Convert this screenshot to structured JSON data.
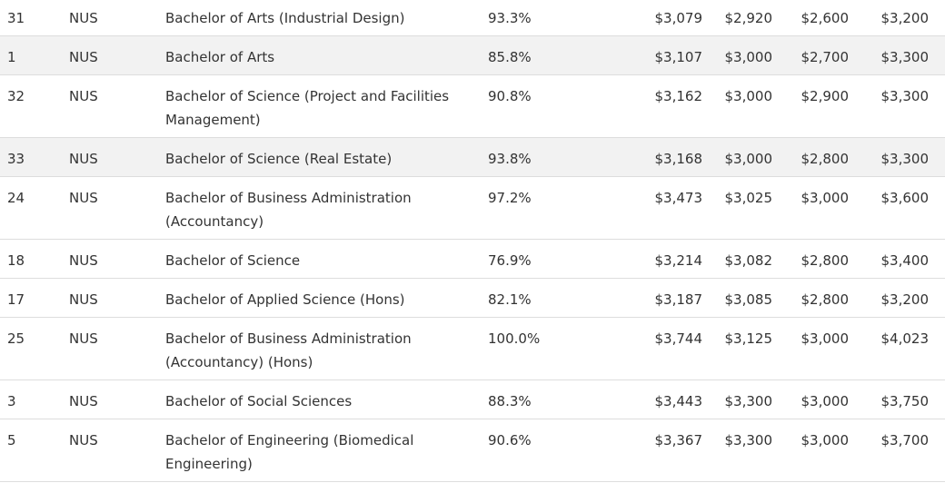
{
  "table": {
    "rows": [
      {
        "rank": "31",
        "university": "NUS",
        "degree": "Bachelor of Arts (Industrial Design)",
        "employment": "93.3%",
        "mean": "$3,079",
        "median": "$2,920",
        "p25": "$2,600",
        "p75": "$3,200"
      },
      {
        "rank": "1",
        "university": "NUS",
        "degree": "Bachelor of Arts",
        "employment": "85.8%",
        "mean": "$3,107",
        "median": "$3,000",
        "p25": "$2,700",
        "p75": "$3,300"
      },
      {
        "rank": "32",
        "university": "NUS",
        "degree": "Bachelor of Science (Project and Facilities Management)",
        "employment": "90.8%",
        "mean": "$3,162",
        "median": "$3,000",
        "p25": "$2,900",
        "p75": "$3,300"
      },
      {
        "rank": "33",
        "university": "NUS",
        "degree": "Bachelor of Science (Real Estate)",
        "employment": "93.8%",
        "mean": "$3,168",
        "median": "$3,000",
        "p25": "$2,800",
        "p75": "$3,300"
      },
      {
        "rank": "24",
        "university": "NUS",
        "degree": "Bachelor of Business Administration (Accountancy)",
        "employment": "97.2%",
        "mean": "$3,473",
        "median": "$3,025",
        "p25": "$3,000",
        "p75": "$3,600"
      },
      {
        "rank": "18",
        "university": "NUS",
        "degree": "Bachelor of Science",
        "employment": "76.9%",
        "mean": "$3,214",
        "median": "$3,082",
        "p25": "$2,800",
        "p75": "$3,400"
      },
      {
        "rank": "17",
        "university": "NUS",
        "degree": "Bachelor of Applied Science (Hons)",
        "employment": "82.1%",
        "mean": "$3,187",
        "median": "$3,085",
        "p25": "$2,800",
        "p75": "$3,200"
      },
      {
        "rank": "25",
        "university": "NUS",
        "degree": "Bachelor of Business Administration (Accountancy) (Hons)",
        "employment": "100.0%",
        "mean": "$3,744",
        "median": "$3,125",
        "p25": "$3,000",
        "p75": "$4,023"
      },
      {
        "rank": "3",
        "university": "NUS",
        "degree": "Bachelor of Social Sciences",
        "employment": "88.3%",
        "mean": "$3,443",
        "median": "$3,300",
        "p25": "$3,000",
        "p75": "$3,750"
      },
      {
        "rank": "5",
        "university": "NUS",
        "degree": "Bachelor of Engineering (Biomedical Engineering)",
        "employment": "90.6%",
        "mean": "$3,367",
        "median": "$3,300",
        "p25": "$3,000",
        "p75": "$3,700"
      }
    ]
  }
}
